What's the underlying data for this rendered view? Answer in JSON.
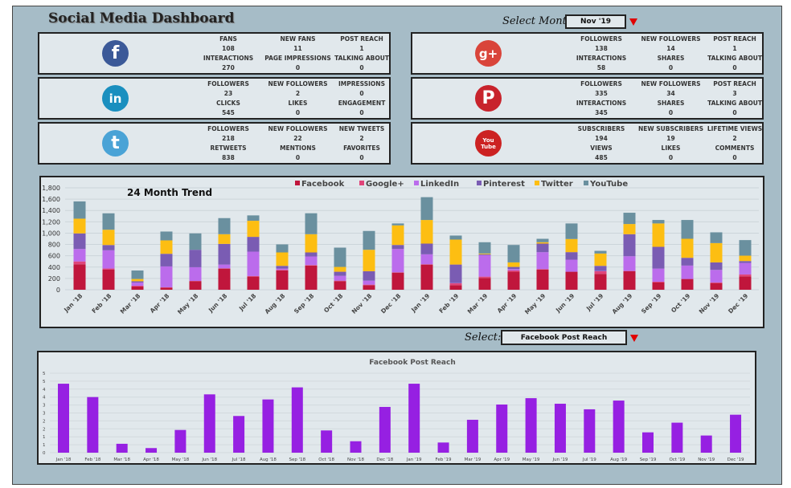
{
  "title": "Social Media Dashboard",
  "month_select": {
    "label": "Select Month",
    "value": "Nov '19"
  },
  "panels": [
    {
      "network": "Facebook",
      "icon": "facebook-icon",
      "color": "#3b5998",
      "glyph": "f",
      "stats": [
        [
          "FANS",
          "108"
        ],
        [
          "NEW FANS",
          "11"
        ],
        [
          "POST REACH",
          "1"
        ],
        [
          "INTERACTIONS",
          "270"
        ],
        [
          "PAGE IMPRESSIONS",
          "0"
        ],
        [
          "TALKING ABOUT",
          "0"
        ]
      ]
    },
    {
      "network": "LinkedIn",
      "icon": "linkedin-icon",
      "color": "#1a8fbf",
      "glyph": "in",
      "stats": [
        [
          "FOLLOWERS",
          "23"
        ],
        [
          "NEW FOLLOWERS",
          "2"
        ],
        [
          "IMPRESSIONS",
          "0"
        ],
        [
          "CLICKS",
          "545"
        ],
        [
          "LIKES",
          "0"
        ],
        [
          "ENGAGEMENT",
          "0"
        ]
      ]
    },
    {
      "network": "Twitter",
      "icon": "twitter-icon",
      "color": "#4aa3d6",
      "glyph": "t",
      "stats": [
        [
          "FOLLOWERS",
          "218"
        ],
        [
          "NEW FOLLOWERS",
          "22"
        ],
        [
          "NEW TWEETS",
          "2"
        ],
        [
          "RETWEETS",
          "838"
        ],
        [
          "MENTIONS",
          "0"
        ],
        [
          "FAVORITES",
          "0"
        ]
      ]
    },
    {
      "network": "Google+",
      "icon": "google-plus-icon",
      "color": "#d9443a",
      "glyph": "g+",
      "stats": [
        [
          "FOLLOWERS",
          "138"
        ],
        [
          "NEW FOLLOWERS",
          "14"
        ],
        [
          "POST REACH",
          "1"
        ],
        [
          "INTERACTIONS",
          "58"
        ],
        [
          "SHARES",
          "0"
        ],
        [
          "TALKING ABOUT",
          "0"
        ]
      ]
    },
    {
      "network": "Pinterest",
      "icon": "pinterest-icon",
      "color": "#c8232c",
      "glyph": "P",
      "stats": [
        [
          "FOLLOWERS",
          "335"
        ],
        [
          "NEW FOLLOWERS",
          "34"
        ],
        [
          "POST REACH",
          "3"
        ],
        [
          "INTERACTIONS",
          "345"
        ],
        [
          "SHARES",
          "0"
        ],
        [
          "TALKING ABOUT",
          "0"
        ]
      ]
    },
    {
      "network": "YouTube",
      "icon": "youtube-icon",
      "color": "#cc2222",
      "glyph": "You Tube",
      "stats": [
        [
          "SUBSCRIBERS",
          "194"
        ],
        [
          "NEW SUBSCRIBERS",
          "19"
        ],
        [
          "LIFETIME VIEWS",
          "2"
        ],
        [
          "VIEWS",
          "485"
        ],
        [
          "LIKES",
          "0"
        ],
        [
          "COMMENTS",
          "0"
        ]
      ]
    }
  ],
  "metric_select": {
    "label": "Select:",
    "value": "Facebook Post Reach"
  },
  "chart_data": [
    {
      "type": "bar",
      "stacked": true,
      "title": "24 Month Trend",
      "legend": "top",
      "grid": true,
      "ylim": [
        0,
        1800
      ],
      "yticks": [
        "0",
        "200",
        "400",
        "600",
        "800",
        "1,000",
        "1,200",
        "1,400",
        "1,600",
        "1,800"
      ],
      "categories": [
        "Jan '18",
        "Feb '18",
        "Mar '18",
        "Apr '18",
        "May '18",
        "Jun '18",
        "Jul '18",
        "Aug '18",
        "Sep '18",
        "Oct '18",
        "Nov '18",
        "Dec '18",
        "Jan '19",
        "Feb '19",
        "Mar '19",
        "Apr '19",
        "May '19",
        "Jun '19",
        "Jul '19",
        "Aug '19",
        "Sep '19",
        "Oct '19",
        "Nov '19",
        "Dec '19"
      ],
      "series": [
        {
          "name": "Facebook",
          "color": "#c0163c",
          "values": [
            450,
            355,
            57,
            38,
            152,
            374,
            232,
            341,
            427,
            152,
            81,
            303,
            445,
            81,
            209,
            318,
            355,
            318,
            280,
            327,
            128,
            190,
            118,
            237
          ]
        },
        {
          "name": "Google+",
          "color": "#e0457a",
          "values": [
            50,
            20,
            13,
            5,
            4,
            5,
            10,
            10,
            9,
            9,
            9,
            5,
            5,
            33,
            23,
            23,
            10,
            0,
            47,
            5,
            14,
            0,
            10,
            33
          ]
        },
        {
          "name": "LinkedIn",
          "color": "#bb6cec",
          "values": [
            220,
            322,
            58,
            369,
            242,
            66,
            431,
            23,
            152,
            85,
            71,
            412,
            176,
            4,
            379,
            24,
            299,
            213,
            5,
            260,
            232,
            237,
            223,
            204
          ]
        },
        {
          "name": "Pinterest",
          "color": "#7a5cb3",
          "values": [
            275,
            93,
            22,
            223,
            308,
            365,
            261,
            48,
            71,
            72,
            166,
            71,
            189,
            327,
            15,
            38,
            151,
            133,
            90,
            389,
            384,
            137,
            132,
            33
          ]
        },
        {
          "name": "Twitter",
          "color": "#fdbe12",
          "values": [
            260,
            270,
            40,
            237,
            0,
            171,
            284,
            237,
            322,
            85,
            379,
            346,
            417,
            441,
            14,
            80,
            24,
            232,
            218,
            180,
            413,
            336,
            341,
            95
          ]
        },
        {
          "name": "YouTube",
          "color": "#6a909f",
          "values": [
            305,
            290,
            150,
            156,
            289,
            284,
            95,
            142,
            370,
            341,
            332,
            34,
            403,
            71,
            199,
            308,
            61,
            275,
            47,
            199,
            61,
            332,
            190,
            275
          ]
        }
      ]
    },
    {
      "type": "bar",
      "title": "Facebook Post Reach",
      "grid": true,
      "ylim": [
        0,
        5
      ],
      "color": "#9620e2",
      "yticks": [
        "0",
        "1",
        "1",
        "2",
        "2",
        "3",
        "3",
        "4",
        "4",
        "5",
        "5"
      ],
      "categories": [
        "Jan '18",
        "Feb '18",
        "Mar '18",
        "Apr '18",
        "May '18",
        "Jun '18",
        "Jul '18",
        "Aug '18",
        "Sep '18",
        "Oct '18",
        "Nov '18",
        "Dec '18",
        "Jan '19",
        "Feb '19",
        "Mar '19",
        "Apr '19",
        "May '19",
        "Jun '19",
        "Jul '19",
        "Aug '19",
        "Sep '19",
        "Oct '19",
        "Nov '19",
        "Dec '19"
      ],
      "values": [
        4.34,
        3.5,
        0.56,
        0.29,
        1.43,
        3.67,
        2.31,
        3.35,
        4.11,
        1.4,
        0.72,
        2.88,
        4.34,
        0.64,
        2.07,
        3.03,
        3.43,
        3.08,
        2.73,
        3.28,
        1.28,
        1.89,
        1.08,
        2.39
      ]
    }
  ]
}
